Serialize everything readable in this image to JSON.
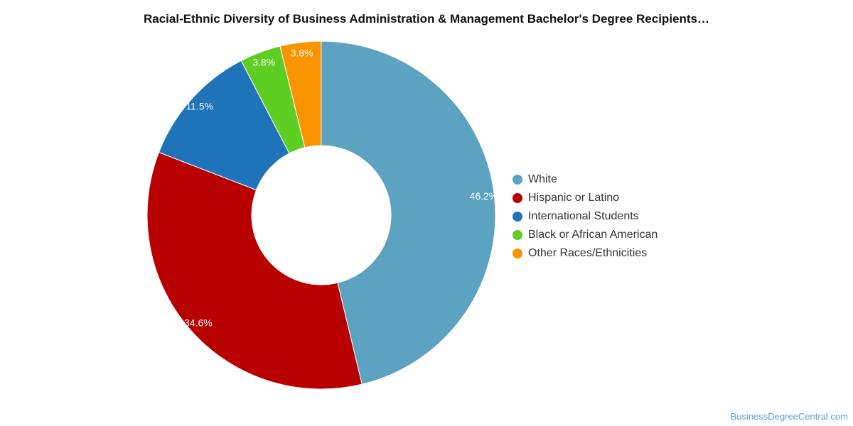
{
  "chart_data": {
    "type": "pie",
    "title": "Racial-Ethnic Diversity of Business Administration & Management Bachelor's Degree Recipients…",
    "donut": true,
    "legend_position": "right",
    "slices": [
      {
        "label": "White",
        "value": 46.2,
        "display": "46.2%",
        "color": "#5ba3c1"
      },
      {
        "label": "Hispanic or Latino",
        "value": 34.6,
        "display": "34.6%",
        "color": "#b80000"
      },
      {
        "label": "International Students",
        "value": 11.5,
        "display": "11.5%",
        "color": "#1e73b9"
      },
      {
        "label": "Black or African American",
        "value": 3.8,
        "display": "3.8%",
        "color": "#5ece23"
      },
      {
        "label": "Other Races/Ethnicities",
        "value": 3.8,
        "display": "3.8%",
        "color": "#f99300"
      }
    ]
  },
  "footer": {
    "credit": "BusinessDegreeCentral.com"
  }
}
